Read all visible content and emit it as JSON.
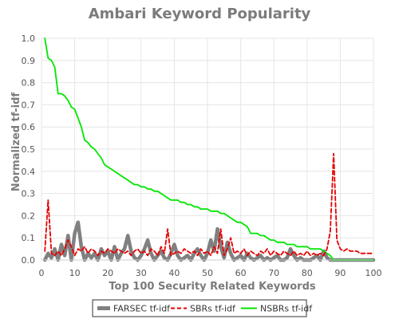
{
  "chart_data": {
    "type": "line",
    "title": "Ambari Keyword Popularity",
    "xlabel": "Top 100 Security Related Keywords",
    "ylabel": "Normalized tf-idf",
    "xlim": [
      0,
      100
    ],
    "ylim": [
      0,
      1.0
    ],
    "xticks": [
      0,
      10,
      20,
      30,
      40,
      50,
      60,
      70,
      80,
      90,
      100
    ],
    "yticks": [
      0.0,
      0.1,
      0.2,
      0.3,
      0.4,
      0.5,
      0.6,
      0.7,
      0.8,
      0.9,
      1.0
    ],
    "x_tick_labels": [
      "0",
      "10",
      "20",
      "30",
      "40",
      "50",
      "60",
      "70",
      "80",
      "90",
      "100"
    ],
    "y_tick_labels": [
      "0.0",
      "0.1",
      "0.2",
      "0.3",
      "0.4",
      "0.5",
      "0.6",
      "0.7",
      "0.8",
      "0.9",
      "1.0"
    ],
    "grid": true,
    "legend_position": "bottom",
    "series": [
      {
        "name": "FARSEC tf-idf",
        "color": "#808080",
        "style": "solid-thick",
        "x": [
          1,
          2,
          3,
          4,
          5,
          6,
          7,
          8,
          9,
          10,
          11,
          12,
          13,
          14,
          15,
          16,
          17,
          18,
          19,
          20,
          21,
          22,
          23,
          24,
          25,
          26,
          27,
          28,
          29,
          30,
          31,
          32,
          33,
          34,
          35,
          36,
          37,
          38,
          39,
          40,
          41,
          42,
          43,
          44,
          45,
          46,
          47,
          48,
          49,
          50,
          51,
          52,
          53,
          54,
          55,
          56,
          57,
          58,
          59,
          60,
          61,
          62,
          63,
          64,
          65,
          66,
          67,
          68,
          69,
          70,
          71,
          72,
          73,
          74,
          75,
          76,
          77,
          78,
          79,
          80,
          81,
          82,
          83,
          84,
          85,
          86,
          87,
          88,
          89,
          90,
          91,
          92,
          93,
          94,
          95,
          96,
          97,
          98,
          99,
          100
        ],
        "y": [
          0.0,
          0.03,
          0.01,
          0.05,
          0.0,
          0.07,
          0.02,
          0.11,
          0.0,
          0.12,
          0.17,
          0.06,
          0.0,
          0.03,
          0.01,
          0.03,
          0.0,
          0.05,
          0.02,
          0.04,
          0.0,
          0.06,
          0.0,
          0.03,
          0.05,
          0.11,
          0.04,
          0.01,
          0.0,
          0.02,
          0.05,
          0.09,
          0.03,
          0.0,
          0.02,
          0.04,
          0.01,
          0.0,
          0.03,
          0.07,
          0.02,
          0.0,
          0.01,
          0.02,
          0.0,
          0.03,
          0.05,
          0.02,
          0.0,
          0.03,
          0.09,
          0.04,
          0.14,
          0.06,
          0.01,
          0.08,
          0.03,
          0.0,
          0.01,
          0.02,
          0.0,
          0.03,
          0.01,
          0.0,
          0.01,
          0.02,
          0.0,
          0.01,
          0.0,
          0.01,
          0.02,
          0.0,
          0.0,
          0.01,
          0.05,
          0.02,
          0.0,
          0.01,
          0.0,
          0.0,
          0.0,
          0.01,
          0.02,
          0.0,
          0.04,
          0.01,
          0.0,
          0.0,
          0.0,
          0.0,
          0.0,
          0.0,
          0.0,
          0.0,
          0.0,
          0.0,
          0.0,
          0.0,
          0.0,
          0.0
        ]
      },
      {
        "name": "SBRs tf-idf",
        "color": "#e60000",
        "style": "dashed",
        "x": [
          1,
          2,
          3,
          4,
          5,
          6,
          7,
          8,
          9,
          10,
          11,
          12,
          13,
          14,
          15,
          16,
          17,
          18,
          19,
          20,
          21,
          22,
          23,
          24,
          25,
          26,
          27,
          28,
          29,
          30,
          31,
          32,
          33,
          34,
          35,
          36,
          37,
          38,
          39,
          40,
          41,
          42,
          43,
          44,
          45,
          46,
          47,
          48,
          49,
          50,
          51,
          52,
          53,
          54,
          55,
          56,
          57,
          58,
          59,
          60,
          61,
          62,
          63,
          64,
          65,
          66,
          67,
          68,
          69,
          70,
          71,
          72,
          73,
          74,
          75,
          76,
          77,
          78,
          79,
          80,
          81,
          82,
          83,
          84,
          85,
          86,
          87,
          88,
          89,
          90,
          91,
          92,
          93,
          94,
          95,
          96,
          97,
          98,
          99,
          100
        ],
        "y": [
          0.04,
          0.27,
          0.03,
          0.02,
          0.04,
          0.02,
          0.05,
          0.09,
          0.06,
          0.02,
          0.05,
          0.04,
          0.06,
          0.03,
          0.05,
          0.04,
          0.02,
          0.04,
          0.03,
          0.05,
          0.04,
          0.03,
          0.05,
          0.04,
          0.03,
          0.04,
          0.02,
          0.04,
          0.05,
          0.03,
          0.04,
          0.02,
          0.05,
          0.04,
          0.02,
          0.06,
          0.03,
          0.14,
          0.02,
          0.03,
          0.04,
          0.03,
          0.05,
          0.04,
          0.03,
          0.04,
          0.02,
          0.05,
          0.03,
          0.04,
          0.02,
          0.06,
          0.03,
          0.14,
          0.02,
          0.05,
          0.1,
          0.03,
          0.04,
          0.03,
          0.05,
          0.02,
          0.04,
          0.03,
          0.02,
          0.04,
          0.03,
          0.05,
          0.02,
          0.04,
          0.03,
          0.02,
          0.04,
          0.03,
          0.02,
          0.04,
          0.02,
          0.03,
          0.02,
          0.04,
          0.02,
          0.03,
          0.02,
          0.03,
          0.02,
          0.05,
          0.13,
          0.48,
          0.09,
          0.05,
          0.04,
          0.05,
          0.04,
          0.04,
          0.04,
          0.03,
          0.03,
          0.03,
          0.03,
          0.03
        ]
      },
      {
        "name": "NSBRs tf-idf",
        "color": "#00e600",
        "style": "solid",
        "x": [
          1,
          2,
          3,
          4,
          5,
          6,
          7,
          8,
          9,
          10,
          11,
          12,
          13,
          14,
          15,
          16,
          17,
          18,
          19,
          20,
          21,
          22,
          23,
          24,
          25,
          26,
          27,
          28,
          29,
          30,
          31,
          32,
          33,
          34,
          35,
          36,
          37,
          38,
          39,
          40,
          41,
          42,
          43,
          44,
          45,
          46,
          47,
          48,
          49,
          50,
          51,
          52,
          53,
          54,
          55,
          56,
          57,
          58,
          59,
          60,
          61,
          62,
          63,
          64,
          65,
          66,
          67,
          68,
          69,
          70,
          71,
          72,
          73,
          74,
          75,
          76,
          77,
          78,
          79,
          80,
          81,
          82,
          83,
          84,
          85,
          86,
          87,
          88,
          89,
          90,
          91,
          92,
          93,
          94,
          95,
          96,
          97,
          98,
          99,
          100
        ],
        "y": [
          1.0,
          0.91,
          0.9,
          0.87,
          0.75,
          0.75,
          0.74,
          0.72,
          0.69,
          0.68,
          0.64,
          0.6,
          0.54,
          0.53,
          0.51,
          0.5,
          0.48,
          0.46,
          0.43,
          0.42,
          0.41,
          0.4,
          0.39,
          0.38,
          0.37,
          0.36,
          0.35,
          0.34,
          0.34,
          0.33,
          0.33,
          0.32,
          0.32,
          0.31,
          0.31,
          0.3,
          0.29,
          0.28,
          0.27,
          0.27,
          0.27,
          0.26,
          0.26,
          0.25,
          0.25,
          0.24,
          0.24,
          0.23,
          0.23,
          0.23,
          0.22,
          0.22,
          0.22,
          0.21,
          0.21,
          0.2,
          0.19,
          0.18,
          0.17,
          0.17,
          0.16,
          0.15,
          0.12,
          0.12,
          0.12,
          0.11,
          0.11,
          0.1,
          0.09,
          0.09,
          0.08,
          0.08,
          0.08,
          0.07,
          0.07,
          0.07,
          0.06,
          0.06,
          0.06,
          0.06,
          0.05,
          0.05,
          0.05,
          0.05,
          0.04,
          0.03,
          0.02,
          0.0,
          0.0,
          0.0,
          0.0,
          0.0,
          0.0,
          0.0,
          0.0,
          0.0,
          0.0,
          0.0,
          0.0,
          0.0
        ]
      }
    ]
  }
}
